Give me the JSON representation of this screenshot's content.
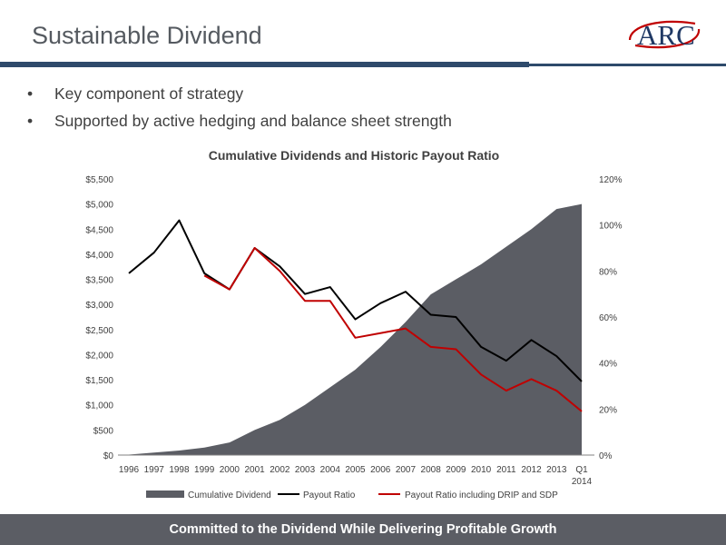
{
  "slide": {
    "title": "Sustainable Dividend",
    "logo": "ARC",
    "bullets": [
      "Key component of strategy",
      "Supported by active hedging and balance sheet strength"
    ],
    "footer": "Committed to the Dividend While Delivering Profitable Growth"
  },
  "chart_data": {
    "type": "area",
    "title": "Cumulative Dividends and Historic Payout Ratio",
    "categories": [
      "1996",
      "1997",
      "1998",
      "1999",
      "2000",
      "2001",
      "2002",
      "2003",
      "2004",
      "2005",
      "2006",
      "2007",
      "2008",
      "2009",
      "2010",
      "2011",
      "2012",
      "2013",
      "Q1 2014"
    ],
    "y_left": {
      "range": [
        0,
        5500
      ],
      "ticks": [
        0,
        500,
        1000,
        1500,
        2000,
        2500,
        3000,
        3500,
        4000,
        4500,
        5000,
        5500
      ],
      "tick_labels": [
        "$0",
        "$500",
        "$1,000",
        "$1,500",
        "$2,000",
        "$2,500",
        "$3,000",
        "$3,500",
        "$4,000",
        "$4,500",
        "$5,000",
        "$5,500"
      ]
    },
    "y_right": {
      "range": [
        0,
        120
      ],
      "ticks": [
        0,
        20,
        40,
        60,
        80,
        100,
        120
      ],
      "tick_labels": [
        "0%",
        "20%",
        "40%",
        "60%",
        "80%",
        "100%",
        "120%"
      ]
    },
    "series": [
      {
        "name": "Cumulative Dividend",
        "axis": "left",
        "style": "area",
        "color": "#5b5d64",
        "values": [
          10,
          50,
          90,
          150,
          250,
          500,
          700,
          1000,
          1350,
          1700,
          2150,
          2650,
          3200,
          3500,
          3800,
          4150,
          4500,
          4900,
          5000
        ]
      },
      {
        "name": "Payout Ratio",
        "axis": "right",
        "style": "line",
        "color": "#000000",
        "values": [
          79,
          88,
          102,
          79,
          72,
          90,
          82,
          70,
          73,
          59,
          66,
          71,
          61,
          60,
          47,
          41,
          50,
          43,
          32
        ]
      },
      {
        "name": "Payout Ratio including DRIP and SDP",
        "axis": "right",
        "style": "line",
        "color": "#c00000",
        "values": [
          null,
          null,
          null,
          78,
          72,
          90,
          80,
          67,
          67,
          51,
          53,
          55,
          47,
          46,
          35,
          28,
          33,
          28,
          19
        ]
      }
    ],
    "legend_position": "bottom",
    "grid": false
  }
}
